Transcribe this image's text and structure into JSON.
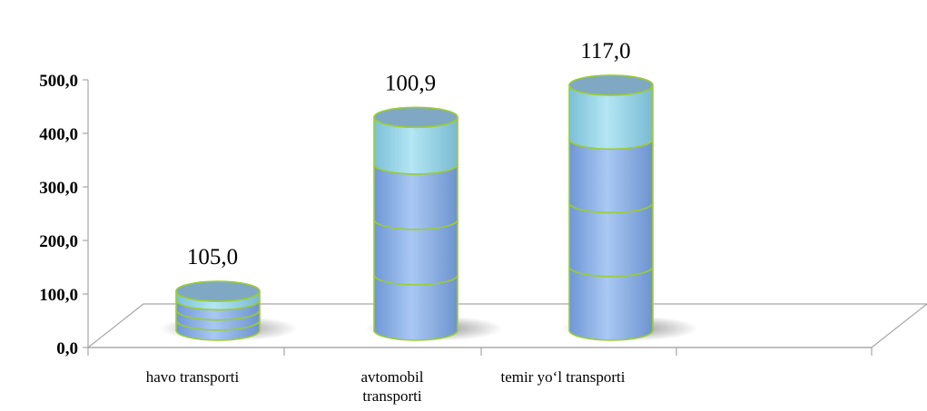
{
  "chart_data": {
    "type": "bar",
    "categories": [
      "havo transporti",
      "avtomobil transporti",
      "temir yo‘l transporti"
    ],
    "values": [
      105.0,
      430.0,
      490.0
    ],
    "data_labels": [
      "105,0",
      "100,9",
      "117,0"
    ],
    "yticks": [
      "0,0",
      "100,0",
      "200,0",
      "300,0",
      "400,0",
      "500,0"
    ],
    "ylim": [
      0,
      500
    ],
    "title": "",
    "xlabel": "",
    "ylabel": "",
    "grid": false,
    "style": "3d-cylinder",
    "colors": {
      "body": "#8fb4e8",
      "top_segment": "#9fd8ea",
      "cap": "#7fa8c4",
      "outline": "#9acd32",
      "floor": "#a6a6a6"
    }
  }
}
